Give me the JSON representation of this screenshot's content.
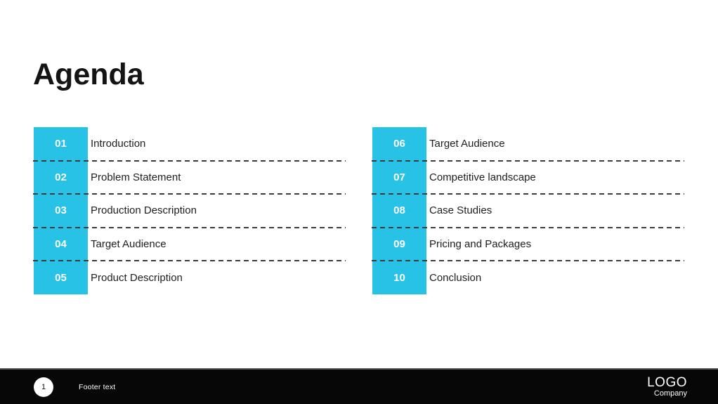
{
  "slide": {
    "title": "Agenda",
    "accent_color": "#29C2E7",
    "agenda": {
      "left_column": [
        {
          "number": "01",
          "label": "Introduction"
        },
        {
          "number": "02",
          "label": "Problem Statement"
        },
        {
          "number": "03",
          "label": "Production Description"
        },
        {
          "number": "04",
          "label": "Target Audience"
        },
        {
          "number": "05",
          "label": "Product Description"
        }
      ],
      "right_column": [
        {
          "number": "06",
          "label": "Target Audience"
        },
        {
          "number": "07",
          "label": "Competitive landscape"
        },
        {
          "number": "08",
          "label": "Case Studies"
        },
        {
          "number": "09",
          "label": "Pricing and Packages"
        },
        {
          "number": "10",
          "label": "Conclusion"
        }
      ]
    },
    "footer": {
      "page_number": "1",
      "footer_text": "Footer text",
      "logo_line1": "LOGO",
      "logo_line2": "Company"
    }
  }
}
